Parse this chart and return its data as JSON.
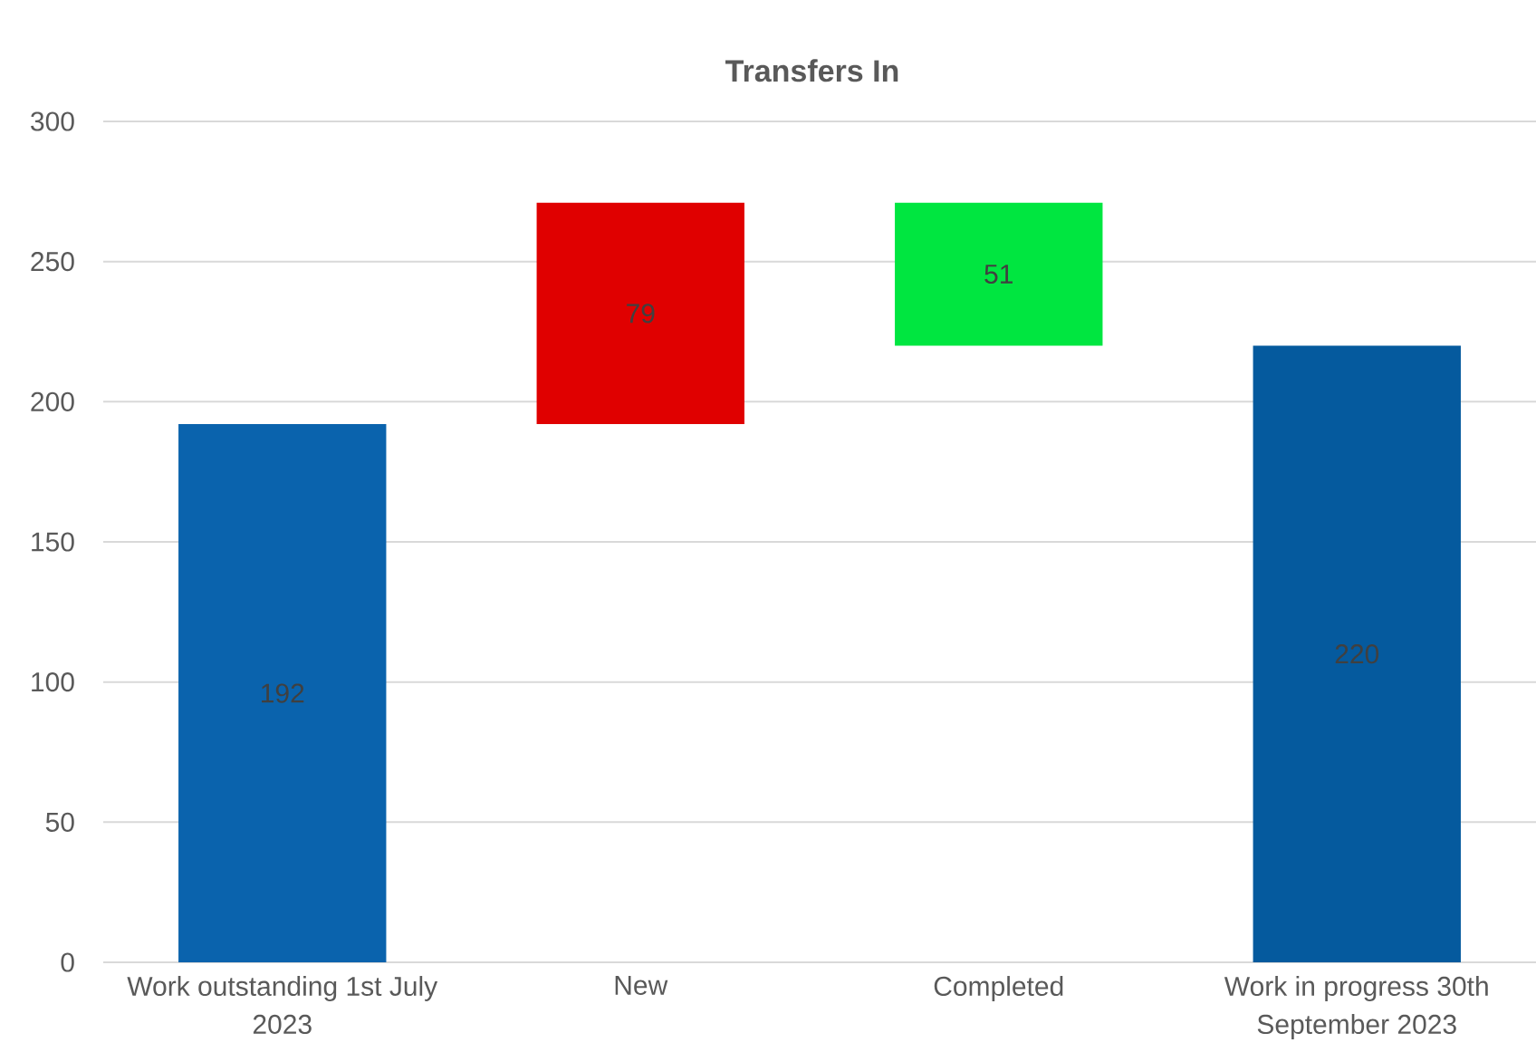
{
  "chart_data": {
    "type": "bar",
    "title": "Transfers In",
    "categories": [
      "Work outstanding 1st July 2023",
      "New",
      "Completed",
      "Work in progress 30th September 2023"
    ],
    "values": [
      192,
      79,
      51,
      220
    ],
    "base": [
      0,
      192,
      220,
      0
    ],
    "colors": [
      "#0a63ad",
      "#e00000",
      "#00e640",
      "#055a9e"
    ],
    "ylim": [
      0,
      300
    ],
    "yticks": [
      0,
      50,
      100,
      150,
      200,
      250,
      300
    ],
    "grid": "y",
    "data_labels": true
  }
}
